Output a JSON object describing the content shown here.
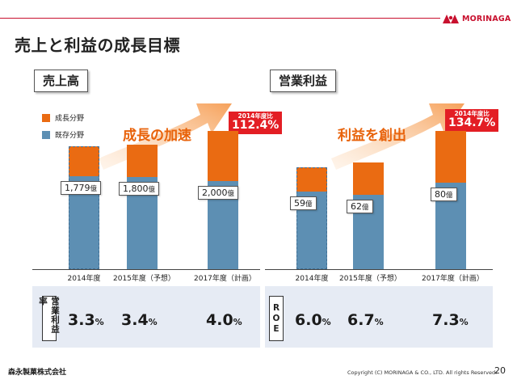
{
  "header": {
    "brand": "MORINAGA",
    "brand_color": "#c8102e",
    "title": "売上と利益の成長目標"
  },
  "legend": {
    "growth": "成長分野",
    "existing": "既存分野",
    "growth_color": "#ea6b12",
    "existing_color": "#5d8fb3"
  },
  "left_panel": {
    "heading": "売上高",
    "arrow_text": "成長の加速",
    "growth_badge": {
      "label": "2014年度比",
      "value": "112.4%"
    }
  },
  "right_panel": {
    "heading": "営業利益",
    "arrow_text": "利益を創出",
    "growth_badge": {
      "label": "2014年度比",
      "value": "134.7%"
    }
  },
  "chart_data": [
    {
      "type": "bar",
      "title": "売上高",
      "stacked": true,
      "categories": [
        "2014年度",
        "2015年度（予想）",
        "2017年度（計画）"
      ],
      "series": [
        {
          "name": "既存分野",
          "values": [
            1341,
            1340,
            1280
          ]
        },
        {
          "name": "成長分野",
          "values": [
            438,
            460,
            720
          ]
        }
      ],
      "totals": [
        1779,
        1800,
        2000
      ],
      "unit": "億",
      "data_labels": [
        "1,779",
        "1,800",
        "2,000"
      ],
      "ylim": [
        0,
        2400
      ]
    },
    {
      "type": "bar",
      "title": "営業利益",
      "stacked": true,
      "categories": [
        "2014年度",
        "2015年度（予想）",
        "2017年度（計画）"
      ],
      "series": [
        {
          "name": "既存分野",
          "values": [
            45,
            43,
            50
          ]
        },
        {
          "name": "成長分野",
          "values": [
            14,
            19,
            30
          ]
        }
      ],
      "totals": [
        59,
        62,
        80
      ],
      "unit": "億",
      "data_labels": [
        "59",
        "62",
        "80"
      ],
      "ylim": [
        0,
        96
      ]
    }
  ],
  "metrics": {
    "left": {
      "badge": "営業利益率",
      "values": [
        "3.3",
        "3.4",
        "4.0"
      ],
      "unit": "%"
    },
    "right": {
      "badge": "ROE",
      "values": [
        "6.0",
        "6.7",
        "7.3"
      ],
      "unit": "%"
    }
  },
  "footer": {
    "company": "森永製菓株式会社",
    "copyright": "Copyright (C) MORINAGA & CO., LTD. All rights Reserved.",
    "page_number": "20"
  }
}
